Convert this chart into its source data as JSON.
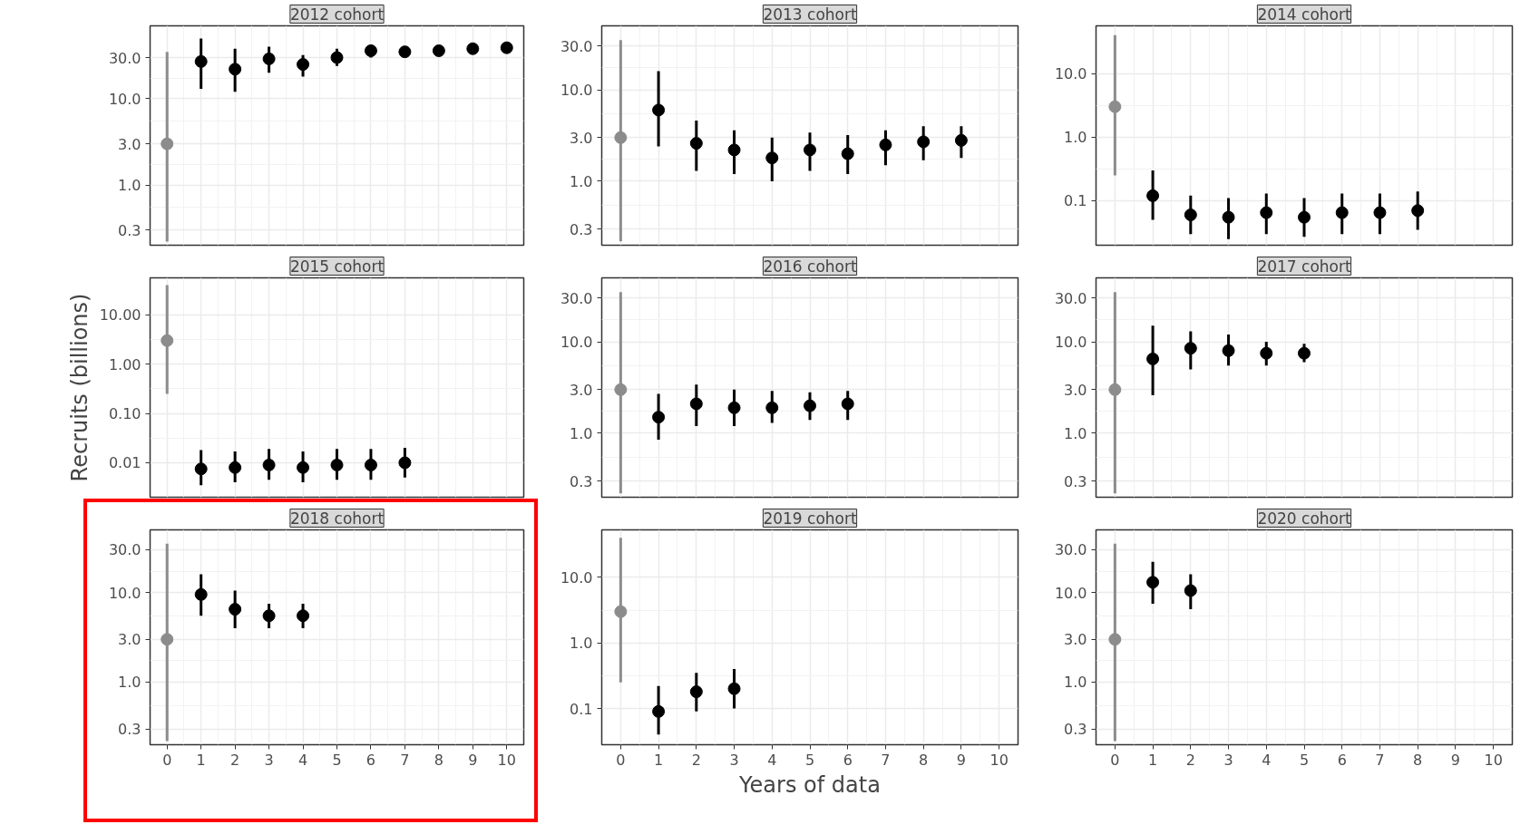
{
  "chart_data": [
    {
      "type": "scatter",
      "title": "2012 cohort",
      "x": [
        0,
        1,
        2,
        3,
        4,
        5,
        6,
        7,
        8,
        9,
        10
      ],
      "values": [
        3,
        27,
        22,
        29,
        25,
        30,
        36,
        35,
        36,
        38,
        39
      ],
      "errors": [
        [
          0.22,
          35
        ],
        [
          13,
          50
        ],
        [
          12,
          38
        ],
        [
          20,
          40
        ],
        [
          18,
          32
        ],
        [
          24,
          38
        ],
        [
          30,
          42
        ],
        [
          31,
          40
        ],
        [
          32,
          40
        ],
        [
          34,
          42
        ],
        [
          35,
          43
        ]
      ],
      "colors": [
        "#8c8c8c",
        "#000000",
        "#000000",
        "#000000",
        "#000000",
        "#000000",
        "#000000",
        "#000000",
        "#000000",
        "#000000",
        "#000000"
      ],
      "xlim": [
        -0.5,
        10.5
      ],
      "xticks": [
        0,
        1,
        2,
        3,
        4,
        5,
        6,
        7,
        8,
        9,
        10
      ],
      "ylim": [
        0.2,
        70
      ],
      "yticks": [
        {
          "value": 0.3,
          "label": "0.3"
        },
        {
          "value": 1,
          "label": "1.0"
        },
        {
          "value": 3,
          "label": "3.0"
        },
        {
          "value": 10,
          "label": "10.0"
        },
        {
          "value": 30,
          "label": "30.0"
        }
      ],
      "log": true,
      "grid": true,
      "marker": "circle",
      "tick_labels": "y"
    },
    {
      "type": "scatter",
      "title": "2013 cohort",
      "x": [
        0,
        1,
        2,
        3,
        4,
        5,
        6,
        7,
        8,
        9
      ],
      "values": [
        3,
        6,
        2.6,
        2.2,
        1.8,
        2.2,
        2.0,
        2.5,
        2.7,
        2.8
      ],
      "errors": [
        [
          0.22,
          35
        ],
        [
          2.4,
          16
        ],
        [
          1.3,
          4.6
        ],
        [
          1.2,
          3.6
        ],
        [
          1.0,
          3.0
        ],
        [
          1.3,
          3.4
        ],
        [
          1.2,
          3.2
        ],
        [
          1.5,
          3.6
        ],
        [
          1.7,
          4
        ],
        [
          1.8,
          4
        ]
      ],
      "colors": [
        "#8c8c8c",
        "#000000",
        "#000000",
        "#000000",
        "#000000",
        "#000000",
        "#000000",
        "#000000",
        "#000000",
        "#000000"
      ],
      "xlim": [
        -0.5,
        10.5
      ],
      "xticks": [
        0,
        1,
        2,
        3,
        4,
        5,
        6,
        7,
        8,
        9,
        10
      ],
      "ylim": [
        0.2,
        50
      ],
      "yticks": [
        {
          "value": 0.3,
          "label": "0.3"
        },
        {
          "value": 1,
          "label": "1.0"
        },
        {
          "value": 3,
          "label": "3.0"
        },
        {
          "value": 10,
          "label": "10.0"
        },
        {
          "value": 30,
          "label": "30.0"
        }
      ],
      "log": true,
      "grid": true,
      "marker": "circle",
      "tick_labels": "y"
    },
    {
      "type": "scatter",
      "title": "2014 cohort",
      "x": [
        0,
        1,
        2,
        3,
        4,
        5,
        6,
        7,
        8
      ],
      "values": [
        3,
        0.12,
        0.06,
        0.055,
        0.065,
        0.055,
        0.065,
        0.065,
        0.07
      ],
      "errors": [
        [
          0.25,
          40
        ],
        [
          0.05,
          0.3
        ],
        [
          0.03,
          0.12
        ],
        [
          0.025,
          0.11
        ],
        [
          0.03,
          0.13
        ],
        [
          0.027,
          0.11
        ],
        [
          0.03,
          0.13
        ],
        [
          0.03,
          0.13
        ],
        [
          0.035,
          0.14
        ]
      ],
      "colors": [
        "#8c8c8c",
        "#000000",
        "#000000",
        "#000000",
        "#000000",
        "#000000",
        "#000000",
        "#000000",
        "#000000"
      ],
      "xlim": [
        -0.5,
        10.5
      ],
      "xticks": [
        0,
        1,
        2,
        3,
        4,
        5,
        6,
        7,
        8,
        9,
        10
      ],
      "ylim": [
        0.02,
        56
      ],
      "yticks": [
        {
          "value": 0.1,
          "label": "0.1"
        },
        {
          "value": 1,
          "label": "1.0"
        },
        {
          "value": 10,
          "label": "10.0"
        }
      ],
      "log": true,
      "grid": true,
      "marker": "circle",
      "tick_labels": "y"
    },
    {
      "type": "scatter",
      "title": "2015 cohort",
      "ylabel": "Recruits (billions)",
      "x": [
        0,
        1,
        2,
        3,
        4,
        5,
        6,
        7
      ],
      "values": [
        3,
        0.0075,
        0.008,
        0.009,
        0.008,
        0.009,
        0.009,
        0.01
      ],
      "errors": [
        [
          0.25,
          40
        ],
        [
          0.0035,
          0.018
        ],
        [
          0.004,
          0.017
        ],
        [
          0.0045,
          0.019
        ],
        [
          0.004,
          0.017
        ],
        [
          0.0045,
          0.019
        ],
        [
          0.0045,
          0.019
        ],
        [
          0.005,
          0.02
        ]
      ],
      "colors": [
        "#8c8c8c",
        "#000000",
        "#000000",
        "#000000",
        "#000000",
        "#000000",
        "#000000",
        "#000000"
      ],
      "xlim": [
        -0.5,
        10.5
      ],
      "xticks": [
        0,
        1,
        2,
        3,
        4,
        5,
        6,
        7,
        8,
        9,
        10
      ],
      "ylim": [
        0.002,
        56
      ],
      "yticks": [
        {
          "value": 0.01,
          "label": "0.01"
        },
        {
          "value": 0.1,
          "label": "0.10"
        },
        {
          "value": 1,
          "label": "1.00"
        },
        {
          "value": 10,
          "label": "10.00"
        }
      ],
      "log": true,
      "grid": true,
      "marker": "circle",
      "tick_labels": "y"
    },
    {
      "type": "scatter",
      "title": "2016 cohort",
      "x": [
        0,
        1,
        2,
        3,
        4,
        5,
        6
      ],
      "values": [
        3,
        1.5,
        2.1,
        1.9,
        1.9,
        2.0,
        2.1
      ],
      "errors": [
        [
          0.22,
          35
        ],
        [
          0.85,
          2.7
        ],
        [
          1.2,
          3.4
        ],
        [
          1.2,
          3
        ],
        [
          1.3,
          2.9
        ],
        [
          1.4,
          2.8
        ],
        [
          1.4,
          2.9
        ]
      ],
      "colors": [
        "#8c8c8c",
        "#000000",
        "#000000",
        "#000000",
        "#000000",
        "#000000",
        "#000000"
      ],
      "xlim": [
        -0.5,
        10.5
      ],
      "xticks": [
        0,
        1,
        2,
        3,
        4,
        5,
        6,
        7,
        8,
        9,
        10
      ],
      "ylim": [
        0.2,
        50
      ],
      "yticks": [
        {
          "value": 0.3,
          "label": "0.3"
        },
        {
          "value": 1,
          "label": "1.0"
        },
        {
          "value": 3,
          "label": "3.0"
        },
        {
          "value": 10,
          "label": "10.0"
        },
        {
          "value": 30,
          "label": "30.0"
        }
      ],
      "log": true,
      "grid": true,
      "marker": "circle",
      "tick_labels": "y"
    },
    {
      "type": "scatter",
      "title": "2017 cohort",
      "x": [
        0,
        1,
        2,
        3,
        4,
        5
      ],
      "values": [
        3,
        6.5,
        8.5,
        8,
        7.5,
        7.5
      ],
      "errors": [
        [
          0.22,
          35
        ],
        [
          2.6,
          15
        ],
        [
          5,
          13
        ],
        [
          5.5,
          12
        ],
        [
          5.5,
          10
        ],
        [
          6,
          9.5
        ]
      ],
      "colors": [
        "#8c8c8c",
        "#000000",
        "#000000",
        "#000000",
        "#000000",
        "#000000"
      ],
      "xlim": [
        -0.5,
        10.5
      ],
      "xticks": [
        0,
        1,
        2,
        3,
        4,
        5,
        6,
        7,
        8,
        9,
        10
      ],
      "ylim": [
        0.2,
        50
      ],
      "yticks": [
        {
          "value": 0.3,
          "label": "0.3"
        },
        {
          "value": 1,
          "label": "1.0"
        },
        {
          "value": 3,
          "label": "3.0"
        },
        {
          "value": 10,
          "label": "10.0"
        },
        {
          "value": 30,
          "label": "30.0"
        }
      ],
      "log": true,
      "grid": true,
      "marker": "circle",
      "tick_labels": "y"
    },
    {
      "type": "scatter",
      "title": "2018 cohort",
      "x": [
        0,
        1,
        2,
        3,
        4
      ],
      "values": [
        3,
        9.5,
        6.5,
        5.5,
        5.5
      ],
      "errors": [
        [
          0.22,
          35
        ],
        [
          5.5,
          16
        ],
        [
          4,
          10.5
        ],
        [
          4,
          7.5
        ],
        [
          4,
          7.5
        ]
      ],
      "colors": [
        "#8c8c8c",
        "#000000",
        "#000000",
        "#000000",
        "#000000"
      ],
      "xlim": [
        -0.5,
        10.5
      ],
      "xticks": [
        0,
        1,
        2,
        3,
        4,
        5,
        6,
        7,
        8,
        9,
        10
      ],
      "ylim": [
        0.2,
        50
      ],
      "yticks": [
        {
          "value": 0.3,
          "label": "0.3"
        },
        {
          "value": 1,
          "label": "1.0"
        },
        {
          "value": 3,
          "label": "3.0"
        },
        {
          "value": 10,
          "label": "10.0"
        },
        {
          "value": 30,
          "label": "30.0"
        }
      ],
      "log": true,
      "grid": true,
      "marker": "circle"
    },
    {
      "type": "scatter",
      "title": "2019 cohort",
      "xlabel": "Years of data",
      "x": [
        0,
        1,
        2,
        3
      ],
      "values": [
        3,
        0.09,
        0.18,
        0.2
      ],
      "errors": [
        [
          0.25,
          40
        ],
        [
          0.04,
          0.22
        ],
        [
          0.09,
          0.35
        ],
        [
          0.1,
          0.4
        ]
      ],
      "colors": [
        "#8c8c8c",
        "#000000",
        "#000000",
        "#000000"
      ],
      "xlim": [
        -0.5,
        10.5
      ],
      "xticks": [
        0,
        1,
        2,
        3,
        4,
        5,
        6,
        7,
        8,
        9,
        10
      ],
      "ylim": [
        0.028,
        53
      ],
      "yticks": [
        {
          "value": 0.1,
          "label": "0.1"
        },
        {
          "value": 1,
          "label": "1.0"
        },
        {
          "value": 10,
          "label": "10.0"
        }
      ],
      "log": true,
      "grid": true,
      "marker": "circle"
    },
    {
      "type": "scatter",
      "title": "2020 cohort",
      "x": [
        0,
        1,
        2
      ],
      "values": [
        3,
        13,
        10.5
      ],
      "errors": [
        [
          0.22,
          35
        ],
        [
          7.5,
          22
        ],
        [
          6.5,
          16
        ]
      ],
      "colors": [
        "#8c8c8c",
        "#000000",
        "#000000"
      ],
      "xlim": [
        -0.5,
        10.5
      ],
      "xticks": [
        0,
        1,
        2,
        3,
        4,
        5,
        6,
        7,
        8,
        9,
        10
      ],
      "ylim": [
        0.2,
        50
      ],
      "yticks": [
        {
          "value": 0.3,
          "label": "0.3"
        },
        {
          "value": 1,
          "label": "1.0"
        },
        {
          "value": 3,
          "label": "3.0"
        },
        {
          "value": 10,
          "label": "10.0"
        },
        {
          "value": 30,
          "label": "30.0"
        }
      ],
      "log": true,
      "grid": true,
      "marker": "circle"
    }
  ]
}
